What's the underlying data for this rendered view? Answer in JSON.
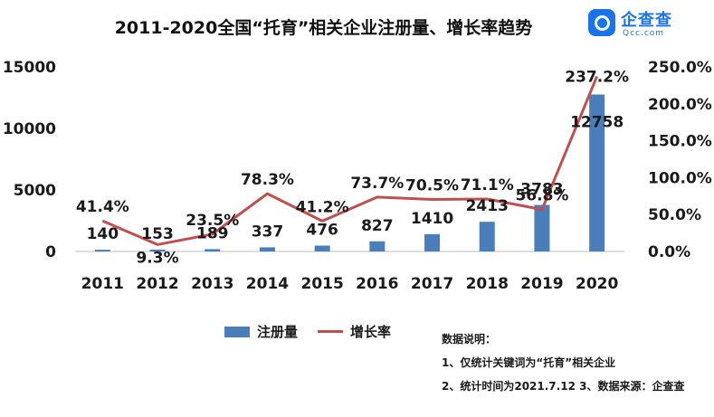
{
  "title": "2011-2020全国“托育”相关企业注册量、增长率趋势",
  "logo": {
    "text": "企查查",
    "sub": "Qcc.com",
    "color": "#1a73e8"
  },
  "chart_data": {
    "type": "bar",
    "categories": [
      "2011",
      "2012",
      "2013",
      "2014",
      "2015",
      "2016",
      "2017",
      "2018",
      "2019",
      "2020"
    ],
    "series": [
      {
        "name": "注册量",
        "type": "bar",
        "axis": "left",
        "color": "#4a7ebb",
        "values": [
          140,
          153,
          189,
          337,
          476,
          827,
          1410,
          2413,
          3783,
          12758
        ],
        "labels": [
          "140",
          "153",
          "189",
          "337",
          "476",
          "827",
          "1410",
          "2413",
          "3783",
          "12758"
        ]
      },
      {
        "name": "增长率",
        "type": "line",
        "axis": "right",
        "color": "#c0504d",
        "values": [
          41.4,
          9.3,
          23.5,
          78.3,
          41.2,
          73.7,
          70.5,
          71.1,
          56.8,
          237.2
        ],
        "labels": [
          "41.4%",
          "9.3%",
          "23.5%",
          "78.3%",
          "41.2%",
          "73.7%",
          "70.5%",
          "71.1%",
          "56.8%",
          "237.2%"
        ]
      }
    ],
    "y_left": {
      "ylim": [
        0,
        15000
      ],
      "ticks": [
        0,
        5000,
        10000,
        15000
      ],
      "tick_labels": [
        "0",
        "5000",
        "10000",
        "15000"
      ]
    },
    "y_right": {
      "ylim": [
        0,
        250
      ],
      "ticks": [
        0,
        50,
        100,
        150,
        200,
        250
      ],
      "tick_labels": [
        "0.0%",
        "50.0%",
        "100.0%",
        "150.0%",
        "200.0%",
        "250.0%"
      ]
    },
    "grid": false,
    "legend": "bottom-center"
  },
  "notes": {
    "heading": "数据说明：",
    "line1": "1、仅统计关键词为“托育”相关企业",
    "line2": "2、统计时间为2021.7.12 3、数据来源：企查查"
  }
}
